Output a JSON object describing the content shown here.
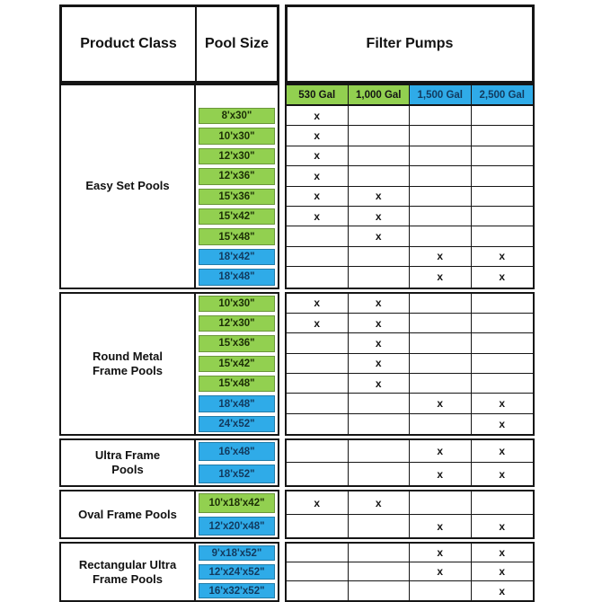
{
  "colors": {
    "green": "#92d050",
    "blue": "#2fabe8",
    "green_text": "#1c2e06",
    "blue_text": "#123a5e",
    "border": "#151515"
  },
  "chart_data": {
    "type": "table",
    "headers": {
      "product_class": "Product Class",
      "pool_size": "Pool Size",
      "filter_pumps": "Filter Pumps"
    },
    "pump_columns": [
      {
        "label": "530 Gal",
        "color": "green"
      },
      {
        "label": "1,000 Gal",
        "color": "green"
      },
      {
        "label": "1,500 Gal",
        "color": "blue"
      },
      {
        "label": "2,500 Gal",
        "color": "blue"
      }
    ],
    "mark_symbol": "x",
    "sections": [
      {
        "product_class": "Easy Set Pools",
        "has_pump_header": true,
        "rows": [
          {
            "size": "8'x30\"",
            "color": "green",
            "pumps": [
              "x",
              "",
              "",
              ""
            ]
          },
          {
            "size": "10'x30\"",
            "color": "green",
            "pumps": [
              "x",
              "",
              "",
              ""
            ]
          },
          {
            "size": "12'x30\"",
            "color": "green",
            "pumps": [
              "x",
              "",
              "",
              ""
            ]
          },
          {
            "size": "12'x36\"",
            "color": "green",
            "pumps": [
              "x",
              "",
              "",
              ""
            ]
          },
          {
            "size": "15'x36\"",
            "color": "green",
            "pumps": [
              "x",
              "x",
              "",
              ""
            ]
          },
          {
            "size": "15'x42\"",
            "color": "green",
            "pumps": [
              "x",
              "x",
              "",
              ""
            ]
          },
          {
            "size": "15'x48\"",
            "color": "green",
            "pumps": [
              "",
              "x",
              "",
              ""
            ]
          },
          {
            "size": "18'x42\"",
            "color": "blue",
            "pumps": [
              "",
              "",
              "x",
              "x"
            ]
          },
          {
            "size": "18'x48\"",
            "color": "blue",
            "pumps": [
              "",
              "",
              "x",
              "x"
            ]
          }
        ]
      },
      {
        "product_class": "Round Metal Frame Pools",
        "has_pump_header": false,
        "rows": [
          {
            "size": "10'x30\"",
            "color": "green",
            "pumps": [
              "x",
              "x",
              "",
              ""
            ]
          },
          {
            "size": "12'x30\"",
            "color": "green",
            "pumps": [
              "x",
              "x",
              "",
              ""
            ]
          },
          {
            "size": "15'x36\"",
            "color": "green",
            "pumps": [
              "",
              "x",
              "",
              ""
            ]
          },
          {
            "size": "15'x42\"",
            "color": "green",
            "pumps": [
              "",
              "x",
              "",
              ""
            ]
          },
          {
            "size": "15'x48\"",
            "color": "green",
            "pumps": [
              "",
              "x",
              "",
              ""
            ]
          },
          {
            "size": "18'x48\"",
            "color": "blue",
            "pumps": [
              "",
              "",
              "x",
              "x"
            ]
          },
          {
            "size": "24'x52\"",
            "color": "blue",
            "pumps": [
              "",
              "",
              "",
              "x"
            ]
          }
        ]
      },
      {
        "product_class": "Ultra Frame Pools",
        "has_pump_header": false,
        "rows": [
          {
            "size": "16'x48\"",
            "color": "blue",
            "pumps": [
              "",
              "",
              "x",
              "x"
            ]
          },
          {
            "size": "18'x52\"",
            "color": "blue",
            "pumps": [
              "",
              "",
              "x",
              "x"
            ]
          }
        ]
      },
      {
        "product_class": "Oval Frame Pools",
        "has_pump_header": false,
        "rows": [
          {
            "size": "10'x18'x42\"",
            "color": "green",
            "pumps": [
              "x",
              "x",
              "",
              ""
            ]
          },
          {
            "size": "12'x20'x48\"",
            "color": "blue",
            "pumps": [
              "",
              "",
              "x",
              "x"
            ]
          }
        ]
      },
      {
        "product_class": "Rectangular Ultra Frame Pools",
        "has_pump_header": false,
        "rows": [
          {
            "size": "9'x18'x52\"",
            "color": "blue",
            "pumps": [
              "",
              "",
              "x",
              "x"
            ]
          },
          {
            "size": "12'x24'x52\"",
            "color": "blue",
            "pumps": [
              "",
              "",
              "x",
              "x"
            ]
          },
          {
            "size": "16'x32'x52\"",
            "color": "blue",
            "pumps": [
              "",
              "",
              "",
              "x"
            ]
          }
        ]
      }
    ]
  }
}
